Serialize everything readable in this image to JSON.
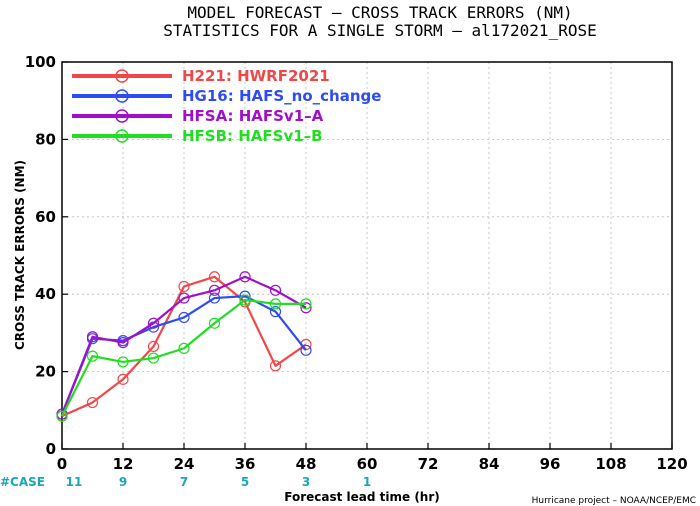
{
  "chart_data": {
    "type": "line",
    "title": "MODEL FORECAST – CROSS TRACK ERRORS (NM)",
    "subtitle": "STATISTICS FOR A SINGLE STORM – al172021_ROSE",
    "xlabel": "Forecast lead time (hr)",
    "ylabel": "CROSS TRACK ERRORS (NM)",
    "xlim": [
      0,
      120
    ],
    "ylim": [
      0,
      100
    ],
    "xticks": [
      0,
      12,
      24,
      36,
      48,
      60,
      72,
      84,
      96,
      108,
      120
    ],
    "yticks": [
      0,
      20,
      40,
      60,
      80,
      100
    ],
    "grid": true,
    "legend_position": "top-left",
    "case_label": "#CASE",
    "cases": [
      {
        "x": 0,
        "n": "11"
      },
      {
        "x": 12,
        "n": "9"
      },
      {
        "x": 24,
        "n": "7"
      },
      {
        "x": 36,
        "n": "5"
      },
      {
        "x": 48,
        "n": "3"
      },
      {
        "x": 60,
        "n": "1"
      }
    ],
    "series": [
      {
        "name": "H221: HWRF2021",
        "color": "#f04848",
        "x": [
          0,
          6,
          12,
          18,
          24,
          30,
          36,
          42,
          48
        ],
        "y": [
          8.5,
          12,
          18,
          26.5,
          42,
          44.5,
          38,
          21.5,
          27
        ]
      },
      {
        "name": "HG16: HAFS_no_change",
        "color": "#2f4cf0",
        "x": [
          0,
          6,
          12,
          18,
          24,
          30,
          36,
          42,
          48
        ],
        "y": [
          9,
          28.5,
          28,
          31.5,
          34,
          39,
          39.5,
          35.5,
          25.5
        ]
      },
      {
        "name": "HFSA: HAFSv1–A",
        "color": "#a010c8",
        "x": [
          0,
          6,
          12,
          18,
          24,
          30,
          36,
          42,
          48
        ],
        "y": [
          9,
          29,
          27.5,
          32.5,
          39,
          41,
          44.5,
          41,
          36.5
        ]
      },
      {
        "name": "HFSB: HAFSv1–B",
        "color": "#22dd22",
        "x": [
          0,
          6,
          12,
          18,
          24,
          30,
          36,
          42,
          48
        ],
        "y": [
          8.5,
          24,
          22.5,
          23.5,
          26,
          32.5,
          38.5,
          37.5,
          37.5
        ]
      }
    ],
    "credit": "Hurricane project – NOAA/NCEP/EMC"
  }
}
